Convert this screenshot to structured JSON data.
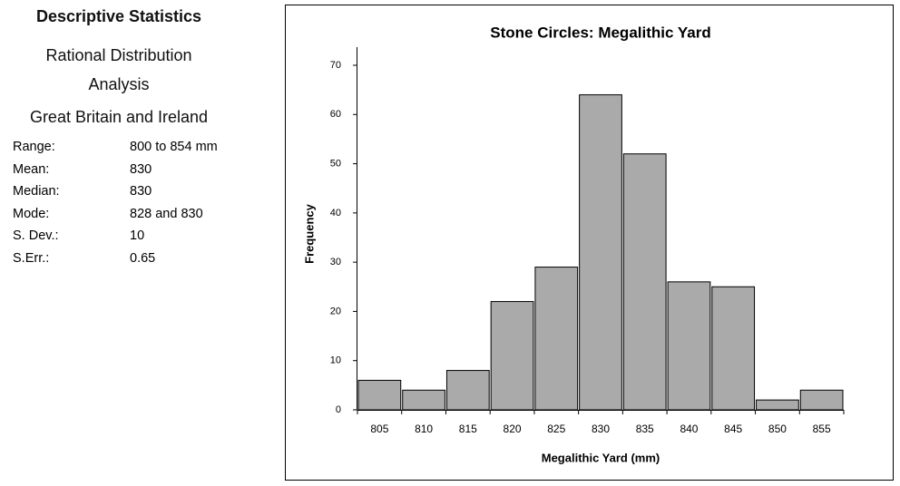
{
  "stats": {
    "title": "Descriptive Statistics",
    "subtitle": "Rational Distribution Analysis",
    "region": "Great Britain and Ireland",
    "rows": [
      [
        "Range:",
        "800 to 854 mm"
      ],
      [
        "Mean:",
        "830"
      ],
      [
        "Median:",
        "830"
      ],
      [
        "Mode:",
        "828 and 830"
      ],
      [
        "S. Dev.:",
        "10"
      ],
      [
        "S.Err.:",
        "0.65"
      ]
    ]
  },
  "chart_data": {
    "type": "bar",
    "title": "Stone Circles: Megalithic Yard",
    "x_label": "Megalithic Yard (mm)",
    "y_label": "Frequency",
    "categories": [
      "805",
      "810",
      "815",
      "820",
      "825",
      "830",
      "835",
      "840",
      "845",
      "850",
      "855"
    ],
    "values": [
      6,
      4,
      8,
      22,
      29,
      64,
      52,
      26,
      25,
      2,
      4
    ],
    "color": "#aaaaaa",
    "ylim": [
      0,
      70
    ],
    "yticks": [
      0,
      10,
      20,
      30,
      40,
      50,
      60,
      70
    ]
  }
}
